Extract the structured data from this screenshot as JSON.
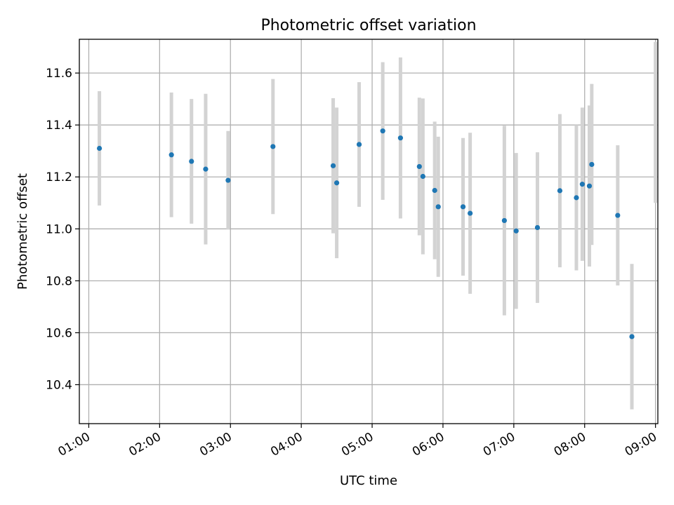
{
  "chart_data": {
    "type": "scatter",
    "title": "Photometric offset variation",
    "xlabel": "UTC time",
    "ylabel": "Photometric offset",
    "x_ticks": [
      "01:00",
      "02:00",
      "03:00",
      "04:00",
      "05:00",
      "06:00",
      "07:00",
      "08:00",
      "09:00"
    ],
    "y_ticks": [
      "10.4",
      "10.6",
      "10.8",
      "11.0",
      "11.2",
      "11.4",
      "11.6"
    ],
    "xlim": [
      "00:52",
      "09:02"
    ],
    "ylim": [
      10.25,
      11.73
    ],
    "grid": true,
    "colors": {
      "points": "#1f77b4",
      "errorbars": "#d3d3d3",
      "grid": "#b0b0b0"
    },
    "points": [
      {
        "x": "01:09",
        "y": 11.31,
        "yerr": 0.22
      },
      {
        "x": "02:10",
        "y": 11.285,
        "yerr": 0.24
      },
      {
        "x": "02:27",
        "y": 11.26,
        "yerr": 0.24
      },
      {
        "x": "02:39",
        "y": 11.23,
        "yerr": 0.29
      },
      {
        "x": "02:58",
        "y": 11.187,
        "yerr": 0.19
      },
      {
        "x": "03:36",
        "y": 11.317,
        "yerr": 0.26
      },
      {
        "x": "04:27",
        "y": 11.243,
        "yerr": 0.26
      },
      {
        "x": "04:30",
        "y": 11.177,
        "yerr": 0.29
      },
      {
        "x": "04:49",
        "y": 11.325,
        "yerr": 0.24
      },
      {
        "x": "05:09",
        "y": 11.377,
        "yerr": 0.265
      },
      {
        "x": "05:24",
        "y": 11.35,
        "yerr": 0.31
      },
      {
        "x": "05:40",
        "y": 11.24,
        "yerr": 0.265
      },
      {
        "x": "05:43",
        "y": 11.202,
        "yerr": 0.3
      },
      {
        "x": "05:53",
        "y": 11.148,
        "yerr": 0.265
      },
      {
        "x": "05:56",
        "y": 11.085,
        "yerr": 0.27
      },
      {
        "x": "06:17",
        "y": 11.085,
        "yerr": 0.265
      },
      {
        "x": "06:23",
        "y": 11.06,
        "yerr": 0.31
      },
      {
        "x": "06:52",
        "y": 11.032,
        "yerr": 0.365
      },
      {
        "x": "07:02",
        "y": 10.992,
        "yerr": 0.3
      },
      {
        "x": "07:20",
        "y": 11.005,
        "yerr": 0.29
      },
      {
        "x": "07:39",
        "y": 11.147,
        "yerr": 0.295
      },
      {
        "x": "07:53",
        "y": 11.12,
        "yerr": 0.28
      },
      {
        "x": "07:58",
        "y": 11.172,
        "yerr": 0.295
      },
      {
        "x": "08:04",
        "y": 11.165,
        "yerr": 0.31
      },
      {
        "x": "08:06",
        "y": 11.248,
        "yerr": 0.31
      },
      {
        "x": "08:28",
        "y": 11.052,
        "yerr": 0.27
      },
      {
        "x": "08:40",
        "y": 10.585,
        "yerr": 0.28
      }
    ],
    "extra_errorbars": [
      {
        "x": "09:00",
        "y": 11.41,
        "yerr": 0.31
      }
    ]
  }
}
